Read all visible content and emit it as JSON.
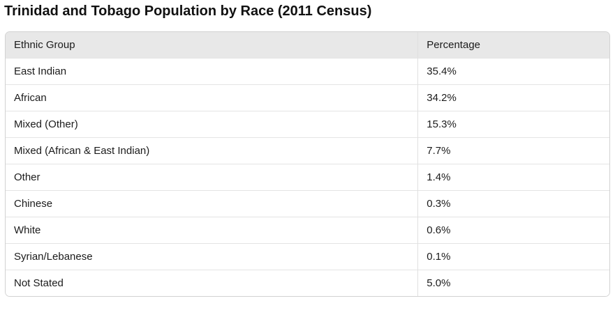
{
  "page": {
    "title": "Trinidad and Tobago Population by Race (2011 Census)"
  },
  "table": {
    "columns": {
      "group": "Ethnic Group",
      "percentage": "Percentage"
    },
    "rows": [
      {
        "group": "East Indian",
        "percentage": "35.4%"
      },
      {
        "group": "African",
        "percentage": "34.2%"
      },
      {
        "group": "Mixed (Other)",
        "percentage": "15.3%"
      },
      {
        "group": "Mixed (African & East Indian)",
        "percentage": "7.7%"
      },
      {
        "group": "Other",
        "percentage": "1.4%"
      },
      {
        "group": "Chinese",
        "percentage": "0.3%"
      },
      {
        "group": "White",
        "percentage": "0.6%"
      },
      {
        "group": "Syrian/Lebanese",
        "percentage": "0.1%"
      },
      {
        "group": "Not Stated",
        "percentage": "5.0%"
      }
    ]
  },
  "chart_data": {
    "type": "table",
    "title": "Trinidad and Tobago Population by Race (2011 Census)",
    "columns": [
      "Ethnic Group",
      "Percentage"
    ],
    "categories": [
      "East Indian",
      "African",
      "Mixed (Other)",
      "Mixed (African & East Indian)",
      "Other",
      "Chinese",
      "White",
      "Syrian/Lebanese",
      "Not Stated"
    ],
    "values": [
      35.4,
      34.2,
      15.3,
      7.7,
      1.4,
      0.3,
      0.6,
      0.1,
      5.0
    ],
    "unit": "%"
  },
  "colors": {
    "header_bg": "#e8e8e8",
    "table_border": "#d2d2d2",
    "row_divider": "#e4e4e4",
    "column_divider": "#e0e0e0",
    "text": "#1b1b1b",
    "background": "#ffffff"
  }
}
